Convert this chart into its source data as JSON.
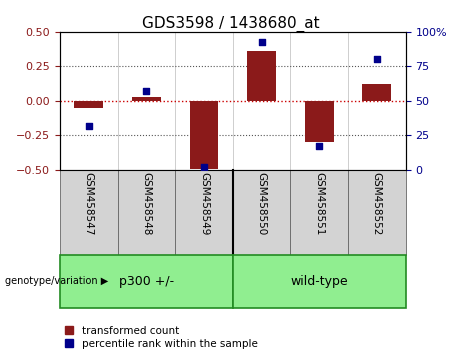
{
  "title": "GDS3598 / 1438680_at",
  "samples": [
    "GSM458547",
    "GSM458548",
    "GSM458549",
    "GSM458550",
    "GSM458551",
    "GSM458552"
  ],
  "red_values": [
    -0.05,
    0.03,
    -0.49,
    0.36,
    -0.3,
    0.12
  ],
  "blue_values": [
    32,
    57,
    2,
    93,
    17,
    80
  ],
  "ylim_left": [
    -0.5,
    0.5
  ],
  "ylim_right": [
    0,
    100
  ],
  "yticks_left": [
    -0.5,
    -0.25,
    0.0,
    0.25,
    0.5
  ],
  "yticks_right": [
    0,
    25,
    50,
    75,
    100
  ],
  "bar_color": "#8B1A1A",
  "scatter_color": "#00008B",
  "bar_width": 0.5,
  "hline_color": "#CC0000",
  "dotted_line_color": "#555555",
  "bg_plot": "#FFFFFF",
  "bg_label": "#D3D3D3",
  "bg_group": "#90EE90",
  "title_fontsize": 11,
  "tick_fontsize": 8,
  "legend_fontsize": 7.5,
  "group_text_fontsize": 9,
  "sample_fontsize": 7.5
}
